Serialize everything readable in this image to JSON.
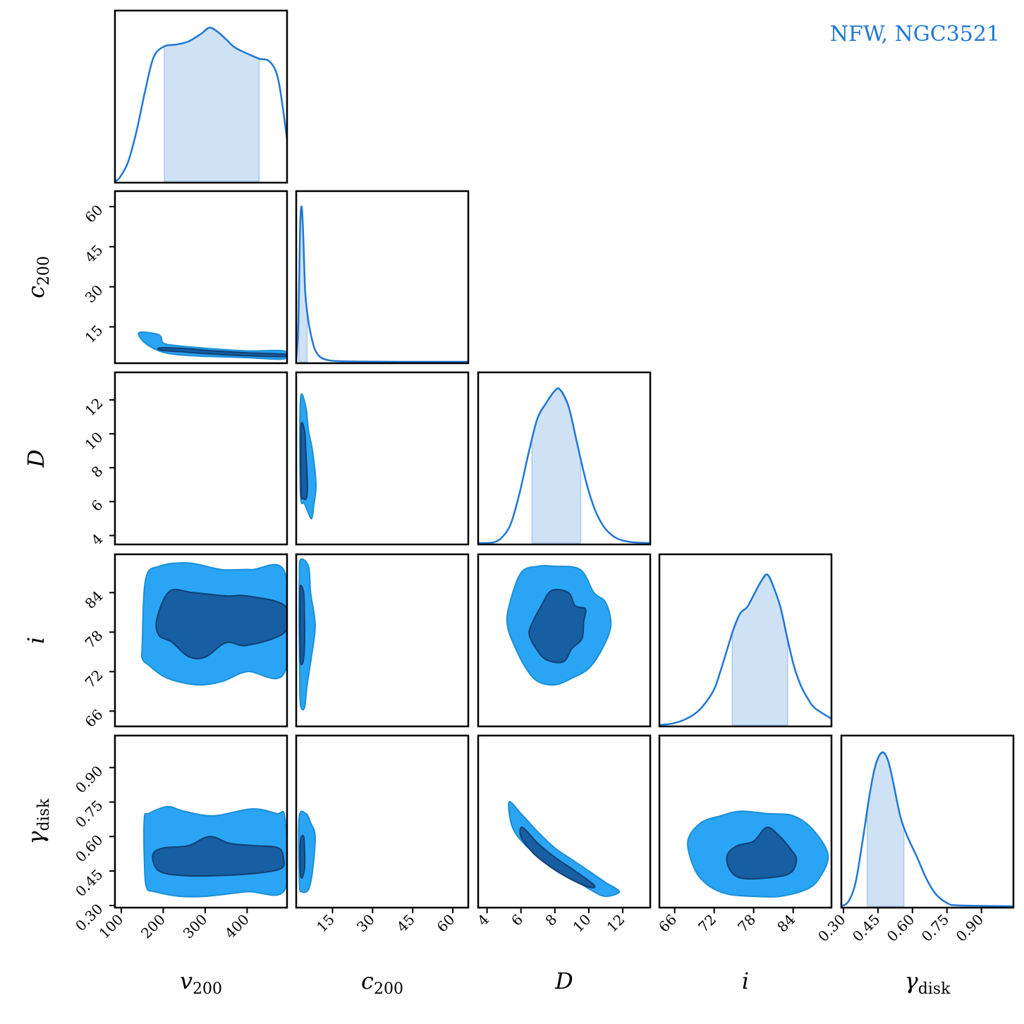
{
  "chart_data": {
    "type": "corner",
    "annotation": "NFW, NGC3521",
    "colors": {
      "line": "#1f77d4",
      "band": "#cfe2f5",
      "level1": "#2aa5f5",
      "level2": "#175ea3",
      "level2_edge": "#123f73"
    },
    "parameters": [
      {
        "key": "v200",
        "label": "v",
        "sub": "200",
        "range": [
          90,
          490
        ],
        "ticks": [
          100,
          200,
          300,
          400
        ],
        "tick_labels": [
          "100",
          "200",
          "300",
          "400"
        ]
      },
      {
        "key": "c200",
        "label": "c",
        "sub": "200",
        "range": [
          2.2,
          65
        ],
        "ticks": [
          15,
          30,
          45,
          60
        ],
        "tick_labels": [
          "15",
          "30",
          "45",
          "60"
        ]
      },
      {
        "key": "D",
        "label": "D",
        "sub": "",
        "range": [
          3.6,
          13.5
        ],
        "ticks": [
          4,
          6,
          8,
          10,
          12
        ],
        "tick_labels": [
          "4",
          "6",
          "8",
          "10",
          "12"
        ]
      },
      {
        "key": "i",
        "label": "i",
        "sub": "",
        "range": [
          64,
          89.5
        ],
        "ticks": [
          66,
          72,
          78,
          84
        ],
        "tick_labels": [
          "66",
          "72",
          "78",
          "84"
        ]
      },
      {
        "key": "gamma_disk",
        "label": "γ",
        "sub": "disk",
        "range": [
          0.3,
          1.03
        ],
        "ticks": [
          0.3,
          0.45,
          0.6,
          0.75,
          0.9
        ],
        "tick_labels": [
          "0.30",
          "0.45",
          "0.60",
          "0.75",
          "0.90"
        ]
      }
    ],
    "marginals": [
      {
        "param": "v200",
        "band": [
          205,
          425
        ],
        "x": [
          90,
          100,
          120,
          140,
          160,
          180,
          205,
          230,
          260,
          290,
          310,
          330,
          350,
          370,
          400,
          425,
          450,
          470,
          490
        ],
        "y": [
          0.0,
          0.02,
          0.12,
          0.32,
          0.58,
          0.8,
          0.87,
          0.88,
          0.9,
          0.95,
          0.99,
          0.96,
          0.91,
          0.86,
          0.82,
          0.79,
          0.77,
          0.65,
          0.27
        ]
      },
      {
        "param": "c200",
        "band": [
          3.2,
          6.2
        ],
        "x": [
          2.2,
          3.0,
          3.6,
          4.2,
          4.8,
          5.5,
          6.5,
          7.5,
          9,
          11,
          14,
          18,
          25,
          40,
          65
        ],
        "y": [
          0.0,
          0.25,
          0.85,
          1.0,
          0.8,
          0.45,
          0.28,
          0.18,
          0.08,
          0.03,
          0.01,
          0.004,
          0.002,
          0.0,
          0.0
        ]
      },
      {
        "param": "D",
        "band": [
          6.7,
          9.5
        ],
        "x": [
          3.6,
          4.5,
          5.0,
          5.5,
          6.0,
          6.5,
          7.0,
          7.5,
          8.0,
          8.3,
          8.8,
          9.3,
          9.8,
          10.3,
          10.8,
          11.3,
          11.8,
          12.5,
          13.5
        ],
        "y": [
          0.0,
          0.005,
          0.04,
          0.13,
          0.33,
          0.58,
          0.8,
          0.9,
          0.98,
          0.99,
          0.88,
          0.64,
          0.4,
          0.22,
          0.11,
          0.05,
          0.02,
          0.005,
          0.0
        ]
      },
      {
        "param": "i",
        "band": [
          74.8,
          83.0
        ],
        "x": [
          64,
          66,
          68,
          70,
          72,
          73,
          74,
          75,
          76,
          77,
          78,
          79,
          80,
          81,
          82,
          83,
          84,
          85,
          86,
          87,
          89.5
        ],
        "y": [
          0.0,
          0.01,
          0.04,
          0.1,
          0.22,
          0.34,
          0.48,
          0.62,
          0.72,
          0.76,
          0.84,
          0.92,
          0.97,
          0.88,
          0.75,
          0.55,
          0.37,
          0.25,
          0.17,
          0.11,
          0.04
        ]
      },
      {
        "param": "gamma_disk",
        "band": [
          0.41,
          0.565
        ],
        "x": [
          0.3,
          0.33,
          0.36,
          0.39,
          0.42,
          0.44,
          0.46,
          0.48,
          0.5,
          0.52,
          0.55,
          0.58,
          0.62,
          0.66,
          0.7,
          0.75,
          0.8,
          1.03
        ],
        "y": [
          0.0,
          0.03,
          0.15,
          0.42,
          0.72,
          0.88,
          0.97,
          0.99,
          0.93,
          0.8,
          0.58,
          0.45,
          0.32,
          0.18,
          0.08,
          0.02,
          0.005,
          0.0
        ]
      }
    ],
    "contours": [
      {
        "x": "v200",
        "y": "c200",
        "outer": [
          [
            145,
            13
          ],
          [
            190,
            12
          ],
          [
            200,
            9
          ],
          [
            230,
            8
          ],
          [
            300,
            7
          ],
          [
            400,
            6
          ],
          [
            487,
            6
          ],
          [
            487,
            3
          ],
          [
            400,
            3.5
          ],
          [
            300,
            4
          ],
          [
            240,
            4.5
          ],
          [
            200,
            5.5
          ],
          [
            165,
            8
          ],
          [
            145,
            11
          ]
        ],
        "inner": [
          [
            195,
            7.2
          ],
          [
            260,
            6.8
          ],
          [
            320,
            6.0
          ],
          [
            400,
            5.3
          ],
          [
            487,
            4.8
          ],
          [
            487,
            3.9
          ],
          [
            400,
            4.2
          ],
          [
            320,
            4.8
          ],
          [
            250,
            5.6
          ],
          [
            195,
            6.3
          ]
        ]
      },
      {
        "x": "c200",
        "y": "D",
        "outer": [
          [
            3.0,
            12.0
          ],
          [
            5.0,
            11.6
          ],
          [
            6.0,
            10.2
          ],
          [
            7.5,
            9.0
          ],
          [
            8.8,
            7.0
          ],
          [
            8.0,
            5.8
          ],
          [
            7.2,
            5.0
          ],
          [
            5.8,
            5.4
          ],
          [
            4.5,
            5.9
          ],
          [
            3.0,
            6.5
          ]
        ],
        "inner": [
          [
            3.2,
            10.4
          ],
          [
            4.5,
            10.2
          ],
          [
            5.0,
            9.0
          ],
          [
            5.6,
            7.0
          ],
          [
            5.2,
            6.2
          ],
          [
            4.0,
            6.2
          ],
          [
            3.2,
            6.6
          ]
        ]
      },
      {
        "x": "v200",
        "y": "i",
        "outer": [
          [
            150,
            76
          ],
          [
            158,
            86
          ],
          [
            190,
            88
          ],
          [
            260,
            88.5
          ],
          [
            340,
            87.5
          ],
          [
            410,
            87.5
          ],
          [
            490,
            87
          ],
          [
            490,
            72
          ],
          [
            400,
            72
          ],
          [
            340,
            70.5
          ],
          [
            280,
            70
          ],
          [
            210,
            71
          ],
          [
            165,
            73
          ],
          [
            150,
            74
          ]
        ],
        "inner": [
          [
            185,
            80
          ],
          [
            215,
            84.2
          ],
          [
            270,
            84
          ],
          [
            350,
            83.5
          ],
          [
            400,
            83.5
          ],
          [
            490,
            82
          ],
          [
            490,
            78
          ],
          [
            400,
            76
          ],
          [
            350,
            76.4
          ],
          [
            300,
            74.2
          ],
          [
            260,
            74.3
          ],
          [
            220,
            76.5
          ],
          [
            190,
            77.5
          ]
        ]
      },
      {
        "x": "c200",
        "y": "i",
        "outer": [
          [
            3.0,
            89
          ],
          [
            6.0,
            88
          ],
          [
            6.8,
            84
          ],
          [
            8.5,
            79
          ],
          [
            7.0,
            74
          ],
          [
            5.5,
            70
          ],
          [
            4.5,
            66.5
          ],
          [
            3.0,
            67
          ],
          [
            2.7,
            72
          ],
          [
            2.5,
            80
          ],
          [
            2.6,
            86
          ]
        ],
        "inner": [
          [
            2.9,
            85
          ],
          [
            4.2,
            84
          ],
          [
            4.5,
            80
          ],
          [
            4.5,
            76
          ],
          [
            4.0,
            73.5
          ],
          [
            3.0,
            73.5
          ],
          [
            2.8,
            78
          ],
          [
            2.8,
            82
          ]
        ]
      },
      {
        "x": "D",
        "y": "i",
        "outer": [
          [
            5.3,
            82
          ],
          [
            6.0,
            87
          ],
          [
            7.0,
            88
          ],
          [
            8.0,
            88
          ],
          [
            9.5,
            87.5
          ],
          [
            10.3,
            84
          ],
          [
            11.0,
            82.5
          ],
          [
            11.3,
            79
          ],
          [
            10.8,
            75.5
          ],
          [
            10.0,
            72.5
          ],
          [
            9.0,
            71
          ],
          [
            8.0,
            70
          ],
          [
            7.0,
            70.5
          ],
          [
            6.3,
            72.5
          ],
          [
            5.6,
            76
          ],
          [
            5.2,
            79
          ]
        ],
        "inner": [
          [
            6.6,
            79
          ],
          [
            7.2,
            82
          ],
          [
            7.8,
            84.3
          ],
          [
            8.8,
            84
          ],
          [
            9.2,
            82
          ],
          [
            9.8,
            81.5
          ],
          [
            9.7,
            79.5
          ],
          [
            9.6,
            77
          ],
          [
            9.0,
            75.5
          ],
          [
            8.5,
            73.5
          ],
          [
            7.5,
            73.8
          ],
          [
            6.9,
            75.5
          ],
          [
            6.5,
            77.5
          ]
        ]
      },
      {
        "x": "v200",
        "y": "gamma_disk",
        "outer": [
          [
            155,
            0.68
          ],
          [
            165,
            0.7
          ],
          [
            210,
            0.73
          ],
          [
            250,
            0.71
          ],
          [
            320,
            0.69
          ],
          [
            410,
            0.72
          ],
          [
            470,
            0.7
          ],
          [
            490,
            0.68
          ],
          [
            490,
            0.37
          ],
          [
            400,
            0.36
          ],
          [
            300,
            0.34
          ],
          [
            240,
            0.34
          ],
          [
            180,
            0.36
          ],
          [
            160,
            0.38
          ],
          [
            155,
            0.5
          ]
        ],
        "inner": [
          [
            175,
            0.52
          ],
          [
            200,
            0.55
          ],
          [
            260,
            0.56
          ],
          [
            310,
            0.6
          ],
          [
            360,
            0.57
          ],
          [
            420,
            0.56
          ],
          [
            475,
            0.55
          ],
          [
            487,
            0.5
          ],
          [
            480,
            0.46
          ],
          [
            420,
            0.44
          ],
          [
            330,
            0.43
          ],
          [
            250,
            0.43
          ],
          [
            190,
            0.45
          ]
        ]
      },
      {
        "x": "c200",
        "y": "gamma_disk",
        "outer": [
          [
            2.5,
            0.68
          ],
          [
            5.0,
            0.7
          ],
          [
            6.8,
            0.66
          ],
          [
            8.5,
            0.6
          ],
          [
            7.5,
            0.45
          ],
          [
            6.0,
            0.37
          ],
          [
            3.5,
            0.36
          ],
          [
            2.6,
            0.4
          ]
        ],
        "inner": [
          [
            3.0,
            0.58
          ],
          [
            4.2,
            0.6
          ],
          [
            4.6,
            0.52
          ],
          [
            4.5,
            0.46
          ],
          [
            3.6,
            0.42
          ],
          [
            2.9,
            0.45
          ]
        ]
      },
      {
        "x": "D",
        "y": "gamma_disk",
        "outer": [
          [
            5.3,
            0.75
          ],
          [
            6.0,
            0.7
          ],
          [
            7.0,
            0.62
          ],
          [
            8.0,
            0.55
          ],
          [
            9.0,
            0.5
          ],
          [
            10.0,
            0.45
          ],
          [
            11.0,
            0.4
          ],
          [
            11.8,
            0.36
          ],
          [
            11.0,
            0.34
          ],
          [
            10.3,
            0.36
          ],
          [
            9.2,
            0.41
          ],
          [
            8.2,
            0.46
          ],
          [
            7.2,
            0.51
          ],
          [
            6.3,
            0.56
          ],
          [
            5.5,
            0.64
          ]
        ],
        "inner": [
          [
            6.1,
            0.64
          ],
          [
            7.0,
            0.57
          ],
          [
            8.0,
            0.51
          ],
          [
            9.0,
            0.46
          ],
          [
            10.3,
            0.39
          ],
          [
            10.0,
            0.38
          ],
          [
            8.8,
            0.42
          ],
          [
            7.7,
            0.47
          ],
          [
            6.7,
            0.53
          ],
          [
            6.0,
            0.6
          ]
        ]
      },
      {
        "x": "i",
        "y": "gamma_disk",
        "outer": [
          [
            68,
            0.58
          ],
          [
            70,
            0.66
          ],
          [
            73,
            0.69
          ],
          [
            76,
            0.71
          ],
          [
            80,
            0.7
          ],
          [
            84,
            0.69
          ],
          [
            87,
            0.63
          ],
          [
            89.3,
            0.52
          ],
          [
            88,
            0.42
          ],
          [
            86,
            0.37
          ],
          [
            82,
            0.34
          ],
          [
            78,
            0.34
          ],
          [
            74,
            0.35
          ],
          [
            71,
            0.39
          ],
          [
            69,
            0.46
          ]
        ],
        "inner": [
          [
            74,
            0.52
          ],
          [
            75.5,
            0.56
          ],
          [
            78,
            0.58
          ],
          [
            80,
            0.64
          ],
          [
            82,
            0.6
          ],
          [
            83.5,
            0.55
          ],
          [
            84.5,
            0.5
          ],
          [
            83.5,
            0.44
          ],
          [
            80,
            0.42
          ],
          [
            76,
            0.42
          ],
          [
            74.3,
            0.46
          ]
        ]
      }
    ]
  }
}
